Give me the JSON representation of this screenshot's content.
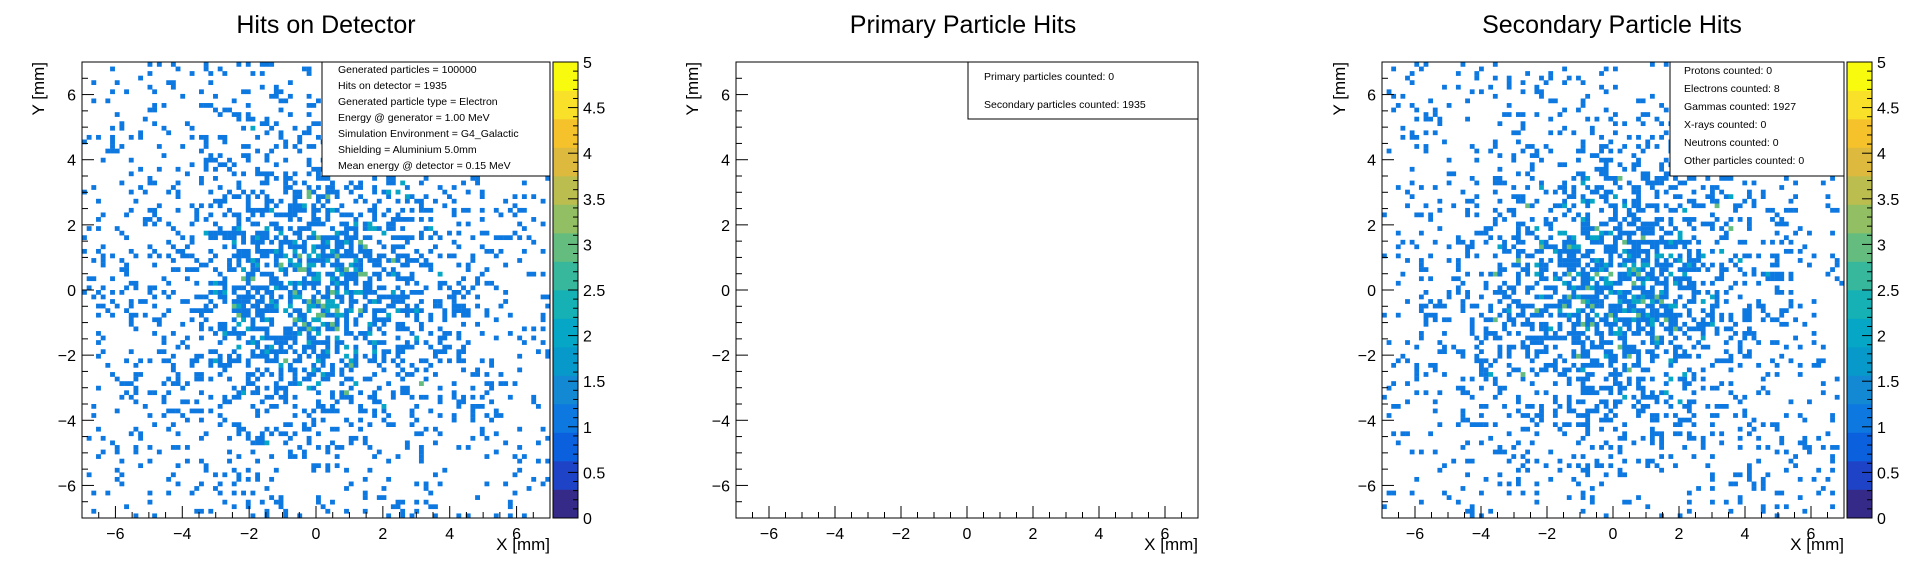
{
  "chart_data": [
    {
      "type": "heatmap",
      "title": "Hits on Detector",
      "xlabel": "X [mm]",
      "ylabel": "Y [mm]",
      "xlim": [
        -7,
        7
      ],
      "ylim": [
        -7,
        7
      ],
      "xticks": [
        "−6",
        "−4",
        "−2",
        "0",
        "2",
        "4",
        "6"
      ],
      "yticks": [
        "−6",
        "−4",
        "−2",
        "0",
        "2",
        "4",
        "6"
      ],
      "colorbar": {
        "range": [
          0,
          5
        ],
        "ticks": [
          "0",
          "0.5",
          "1",
          "1.5",
          "2",
          "2.5",
          "3",
          "3.5",
          "4",
          "4.5",
          "5"
        ]
      },
      "has_hits": true,
      "stats": [
        "Generated particles = 100000",
        "Hits on detector = 1935",
        "Generated particle type = Electron",
        "Energy @ generator = 1.00 MeV",
        "Simulation Environment = G4_Galactic",
        "Shielding = Aluminium 5.0mm",
        "Mean energy @ detector = 0.15 MeV"
      ]
    },
    {
      "type": "heatmap",
      "title": "Primary Particle Hits",
      "xlabel": "X [mm]",
      "ylabel": "Y [mm]",
      "xlim": [
        -7,
        7
      ],
      "ylim": [
        -7,
        7
      ],
      "xticks": [
        "−6",
        "−4",
        "−2",
        "0",
        "2",
        "4",
        "6"
      ],
      "yticks": [
        "−6",
        "−4",
        "−2",
        "0",
        "2",
        "4",
        "6"
      ],
      "colorbar": null,
      "has_hits": false,
      "stats": [
        "Primary particles counted: 0",
        "Secondary particles counted: 1935"
      ]
    },
    {
      "type": "heatmap",
      "title": "Secondary Particle Hits",
      "xlabel": "X [mm]",
      "ylabel": "Y [mm]",
      "xlim": [
        -7,
        7
      ],
      "ylim": [
        -7,
        7
      ],
      "xticks": [
        "−6",
        "−4",
        "−2",
        "0",
        "2",
        "4",
        "6"
      ],
      "yticks": [
        "−6",
        "−4",
        "−2",
        "0",
        "2",
        "4",
        "6"
      ],
      "colorbar": {
        "range": [
          0,
          5
        ],
        "ticks": [
          "0",
          "0.5",
          "1",
          "1.5",
          "2",
          "2.5",
          "3",
          "3.5",
          "4",
          "4.5",
          "5"
        ]
      },
      "has_hits": true,
      "stats": [
        "Protons counted: 0",
        "Electrons counted: 8",
        "Gammas counted: 1927",
        "X-rays counted: 0",
        "Neutrons counted: 0",
        "Other particles counted: 0"
      ]
    }
  ],
  "colors": {
    "palette": [
      "#352a87",
      "#1f43c6",
      "#0b60de",
      "#0d78e0",
      "#1388d3",
      "#0799c9",
      "#06a7c6",
      "#15b1b4",
      "#37b89d",
      "#64bd7f",
      "#92bf64",
      "#bbbd4f",
      "#ddb93e",
      "#f5c22c",
      "#f9e12a",
      "#f9fb0e"
    ],
    "frame": "#000000"
  }
}
